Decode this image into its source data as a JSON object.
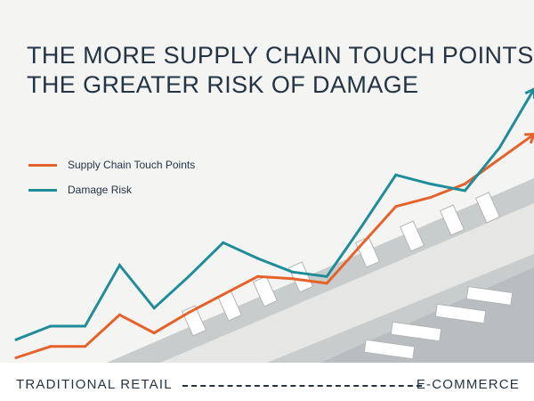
{
  "colors": {
    "background": "#f4f4f3",
    "title_text": "#243443",
    "touch_points": "#e5632b",
    "damage_risk": "#1e8d99",
    "footer_bg": "#ffffff"
  },
  "chart_data": {
    "type": "line",
    "title_lines": [
      "THE MORE SUPPLY CHAIN TOUCH POINTS,",
      "THE GREATER RISK OF DAMAGE"
    ],
    "x": [
      0,
      1,
      2,
      3,
      4,
      5,
      6,
      7,
      8,
      9,
      10,
      11,
      12,
      13,
      14,
      15
    ],
    "ylim": [
      0,
      100
    ],
    "grid": false,
    "legend": "left",
    "x_axis": {
      "start_label": "TRADITIONAL RETAIL",
      "end_label": "E-COMMERCE"
    },
    "series": [
      {
        "name": "Supply Chain Touch Points",
        "color": "#e5632b",
        "arrow": true,
        "values": [
          1,
          6,
          6,
          20,
          12,
          21,
          29,
          37,
          36,
          34,
          51,
          68,
          72,
          78,
          89,
          100
        ]
      },
      {
        "name": "Damage Risk",
        "color": "#1e8d99",
        "arrow": true,
        "values": [
          9,
          15,
          15,
          42,
          23,
          37,
          52,
          45,
          39,
          37,
          59,
          82,
          78,
          75,
          94,
          120
        ]
      }
    ]
  }
}
